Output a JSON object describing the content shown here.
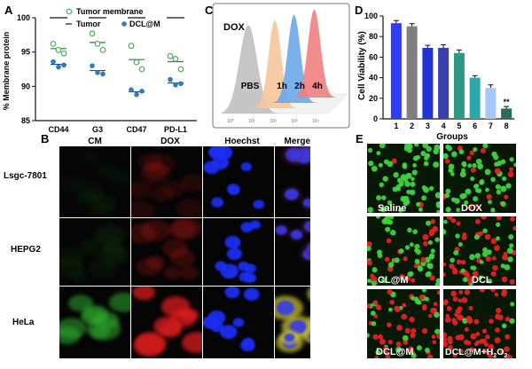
{
  "panel_labels": {
    "a": "A",
    "b": "B",
    "c": "C",
    "d": "D",
    "e": "E"
  },
  "colors": {
    "open_green": "#4caf50",
    "filled_blue": "#2e7bbf",
    "hist_gray": "#c0c0c0",
    "hist_orange": "#f6c79a",
    "hist_blue": "#6aa8e8",
    "hist_red": "#f07f7f",
    "bar_colors": [
      "#2f3df0",
      "#7f7f7f",
      "#2233d6",
      "#3a3fb0",
      "#2a9a82",
      "#2aa8aa",
      "#a8c8f5",
      "#2a6a58"
    ],
    "cm_green": "#2fa82f",
    "dox_red": "#d81e1e",
    "hoechst_blue": "#1d2ef2"
  },
  "chart_data": [
    {
      "panel": "A",
      "type": "scatter",
      "ylabel": "% Membrane protein",
      "ylim": [
        85,
        100
      ],
      "yticks": [
        "85",
        "90",
        "95",
        "100"
      ],
      "categories": [
        "CD44",
        "G3",
        "CD47",
        "PD-L1"
      ],
      "legend": [
        "Tumor membrane",
        "Tumor",
        "DCL@M"
      ],
      "series": [
        {
          "name": "Tumor membrane",
          "marker": "open-circle",
          "values": [
            [
              96.2,
              95.3,
              94.8
            ],
            [
              97.7,
              96.2,
              95.3
            ],
            [
              95.9,
              93.5,
              92.5
            ],
            [
              94.4,
              94.0,
              92.5
            ]
          ]
        },
        {
          "name": "Tumor",
          "marker": "bar",
          "values": [
            100,
            100,
            100,
            100
          ]
        },
        {
          "name": "DCL@M",
          "marker": "filled-circle",
          "values": [
            [
              93.6,
              92.8,
              93.1
            ],
            [
              93.0,
              92.0,
              91.8
            ],
            [
              89.5,
              88.8,
              89.3
            ],
            [
              91.0,
              90.2,
              90.4
            ]
          ]
        },
        {
          "name": "Tumor membrane mean",
          "marker": "line",
          "values": [
            95.5,
            96.4,
            93.9,
            93.6
          ]
        },
        {
          "name": "DCL@M mean",
          "marker": "line",
          "values": [
            93.2,
            92.3,
            89.2,
            90.5
          ]
        }
      ]
    },
    {
      "panel": "C",
      "type": "area",
      "title": "DOX",
      "labels": [
        "PBS",
        "1h",
        "2h",
        "4h"
      ],
      "xticks": [
        "10⁰",
        "10¹",
        "10²",
        "10³",
        "10⁴"
      ],
      "peaks": [
        0.25,
        0.45,
        0.58,
        0.72
      ]
    },
    {
      "panel": "D",
      "type": "bar",
      "ylabel": "Cell Viability (%)",
      "xlabel": "Groups",
      "ylim": [
        0,
        100
      ],
      "yticks": [
        "0",
        "20",
        "40",
        "60",
        "80",
        "100"
      ],
      "categories": [
        "1",
        "2",
        "3",
        "4",
        "5",
        "6",
        "7",
        "8"
      ],
      "values": [
        93,
        90,
        69,
        69,
        64,
        40,
        30,
        10
      ],
      "errors": [
        2.5,
        2.5,
        2.5,
        3,
        3,
        2,
        3,
        2
      ],
      "annotation": "**"
    }
  ],
  "panel_b": {
    "columns": [
      "CM",
      "DOX",
      "Hoechst",
      "Merge"
    ],
    "rows": [
      "Lsgc-7801",
      "HEPG2",
      "HeLa"
    ]
  },
  "panel_e": {
    "labels": [
      "Saline",
      "DOX",
      "CL@M",
      "DCL",
      "DCL@M",
      "DCL@M+H",
      "2",
      "O",
      "2"
    ],
    "red_fraction": [
      0.05,
      0.22,
      0.35,
      0.45,
      0.65,
      0.85
    ]
  }
}
